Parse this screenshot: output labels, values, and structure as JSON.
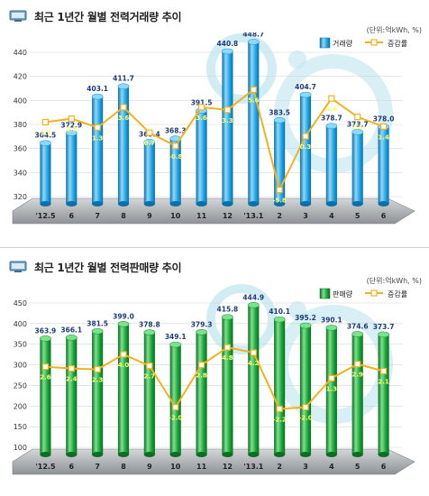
{
  "charts": [
    {
      "title": "최근 1년간 월별 전력거래량 추이",
      "unit": "(단위:억kWh, %)",
      "bar_color": "#1ea6e6",
      "bar_dark": "#0b6fa8",
      "bar_light": "#8fd8fa",
      "line_color": "#f2b21e",
      "bubble_color": "#bfe4f0"
    },
    {
      "title": "최근 1년간 월별 전력판매량 추이",
      "unit": "(단위:억kWh, %)",
      "bar_color": "#19a63a",
      "bar_dark": "#0b6e22",
      "bar_light": "#7fe08e",
      "line_color": "#f2b21e",
      "bubble_color": "#bfe4f0"
    }
  ],
  "chart_data": [
    {
      "type": "bar",
      "categories": [
        "'12.5",
        "6",
        "7",
        "8",
        "9",
        "10",
        "11",
        "12",
        "'13.1",
        "2",
        "3",
        "4",
        "5",
        "6"
      ],
      "series": [
        {
          "name": "거래량",
          "type": "bar",
          "values": [
            364.5,
            372.9,
            403.1,
            411.7,
            365.4,
            368.3,
            391.5,
            440.8,
            448.7,
            383.5,
            404.7,
            378.7,
            373.7,
            378.0
          ]
        },
        {
          "name": "증감률",
          "type": "line",
          "values": [
            1.9,
            2.3,
            1.3,
            3.6,
            0.7,
            -0.8,
            3.6,
            3.3,
            5.6,
            -5.8,
            0.3,
            4.6,
            2.5,
            1.4
          ]
        }
      ],
      "yticks": [
        320,
        340,
        360,
        380,
        400,
        420,
        440
      ],
      "ylim": [
        320,
        440
      ],
      "legend": "top-right"
    },
    {
      "type": "bar",
      "categories": [
        "'12.5",
        "6",
        "7",
        "8",
        "9",
        "10",
        "11",
        "12",
        "'13.1",
        "2",
        "3",
        "4",
        "5",
        "6"
      ],
      "series": [
        {
          "name": "판매량",
          "type": "bar",
          "values": [
            363.9,
            366.1,
            381.5,
            399.0,
            378.8,
            349.1,
            379.3,
            415.8,
            444.9,
            410.1,
            395.2,
            390.1,
            374.6,
            373.7
          ]
        },
        {
          "name": "증감률",
          "type": "line",
          "values": [
            2.6,
            2.4,
            2.3,
            4.0,
            2.7,
            -2.0,
            2.8,
            4.8,
            4.2,
            -2.2,
            -2.0,
            1.3,
            2.9,
            2.1
          ]
        }
      ],
      "yticks": [
        100,
        150,
        200,
        250,
        300,
        350,
        400,
        450
      ],
      "ylim": [
        100,
        450
      ],
      "legend": "top-right"
    }
  ]
}
